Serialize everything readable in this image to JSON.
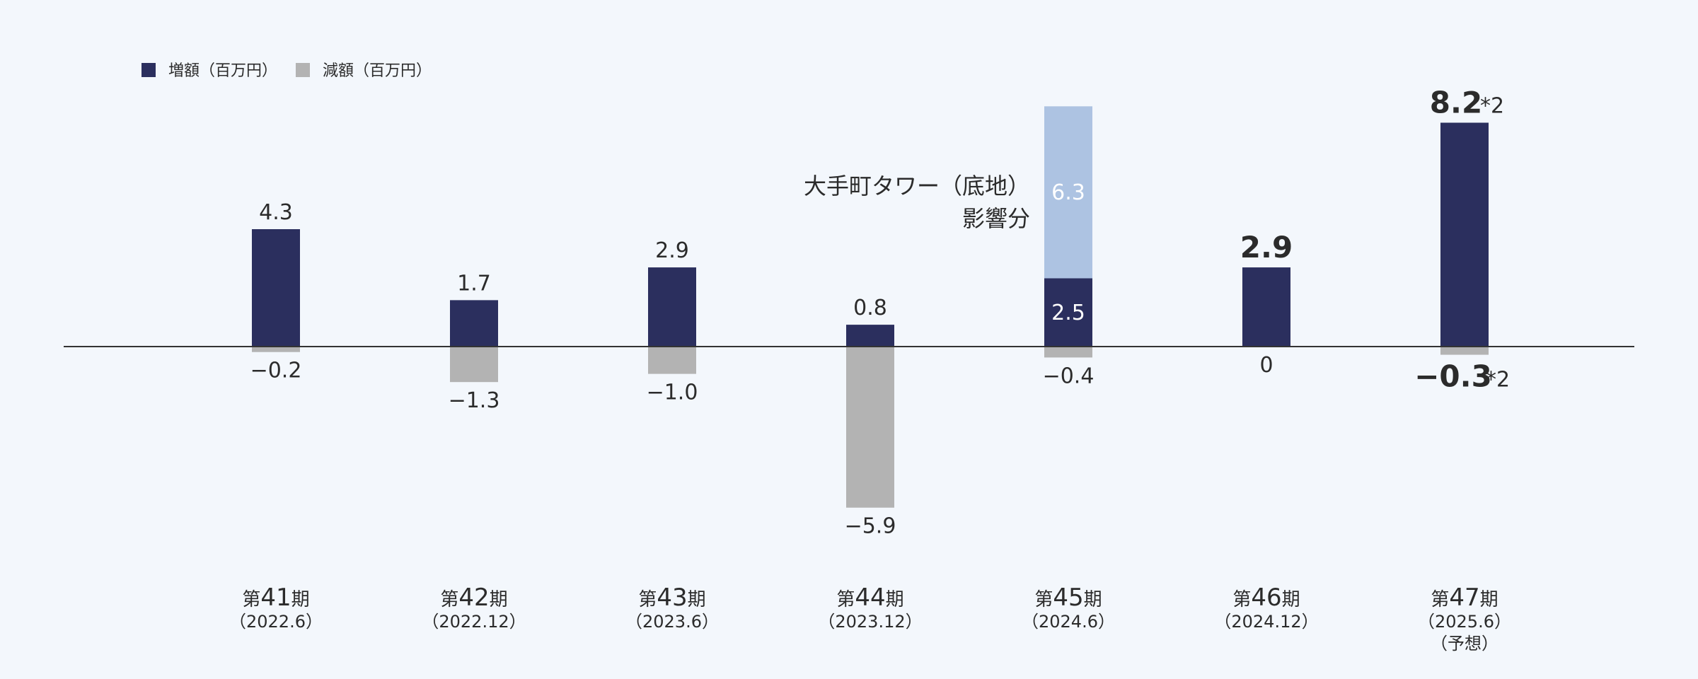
{
  "colors": {
    "background": "#f3f7fc",
    "increase": "#2b2f5e",
    "decrease": "#b3b3b3",
    "otemachi": "#adc3e2",
    "axis": "#333333",
    "text": "#2b2b2b"
  },
  "chart_data": {
    "type": "bar",
    "legend": {
      "position": "top-left",
      "items": [
        {
          "name": "増額（百万円）",
          "color": "#2b2f5e"
        },
        {
          "name": "減額（百万円）",
          "color": "#b3b3b3"
        }
      ]
    },
    "ylim": [
      -7.5,
      10
    ],
    "grid": false,
    "categories": [
      {
        "period": "第41期",
        "period_prefix": "第",
        "period_number": "41",
        "period_suffix": "期",
        "date": "（2022.6）",
        "note": ""
      },
      {
        "period": "第42期",
        "period_prefix": "第",
        "period_number": "42",
        "period_suffix": "期",
        "date": "（2022.12）",
        "note": ""
      },
      {
        "period": "第43期",
        "period_prefix": "第",
        "period_number": "43",
        "period_suffix": "期",
        "date": "（2023.6）",
        "note": ""
      },
      {
        "period": "第44期",
        "period_prefix": "第",
        "period_number": "44",
        "period_suffix": "期",
        "date": "（2023.12）",
        "note": ""
      },
      {
        "period": "第45期",
        "period_prefix": "第",
        "period_number": "45",
        "period_suffix": "期",
        "date": "（2024.6）",
        "note": ""
      },
      {
        "period": "第46期",
        "period_prefix": "第",
        "period_number": "46",
        "period_suffix": "期",
        "date": "（2024.12）",
        "note": ""
      },
      {
        "period": "第47期",
        "period_prefix": "第",
        "period_number": "47",
        "period_suffix": "期",
        "date": "（2025.6）",
        "note": "（予想）"
      }
    ],
    "series": [
      {
        "name": "増額（百万円）",
        "color": "#2b2f5e",
        "values": [
          4.3,
          1.7,
          2.9,
          0.8,
          2.5,
          2.9,
          8.2
        ],
        "labels": [
          "4.3",
          "1.7",
          "2.9",
          "0.8",
          "",
          "2.9",
          "8.2"
        ]
      },
      {
        "name": "減額（百万円）",
        "color": "#b3b3b3",
        "values": [
          -0.2,
          -1.3,
          -1.0,
          -5.9,
          -0.4,
          0,
          -0.3
        ],
        "labels": [
          "−0.2",
          "−1.3",
          "−1.0",
          "−5.9",
          "−0.4",
          "0",
          "−0.3"
        ]
      }
    ],
    "inside_labels": [
      {
        "category_index": 4,
        "text": "2.5",
        "value": 2.5,
        "base": 0
      },
      {
        "category_index": 4,
        "text": "6.3",
        "value": 6.3,
        "base": 2.5
      }
    ],
    "emphasis": {
      "increase_indices": [
        5,
        6
      ],
      "decrease_indices": [
        6
      ]
    },
    "footnote_marks": {
      "increase": {
        "category_index": 6,
        "mark": "*2"
      },
      "decrease": {
        "category_index": 6,
        "mark": "*2"
      }
    },
    "stack": {
      "category_index": 4,
      "name": "大手町タワー（底地）影響分",
      "color": "#adc3e2",
      "value": 6.3,
      "base": 2.5
    },
    "annotation": {
      "category_index": 4,
      "lines": [
        "大手町タワー（底地）",
        "影響分"
      ]
    }
  }
}
